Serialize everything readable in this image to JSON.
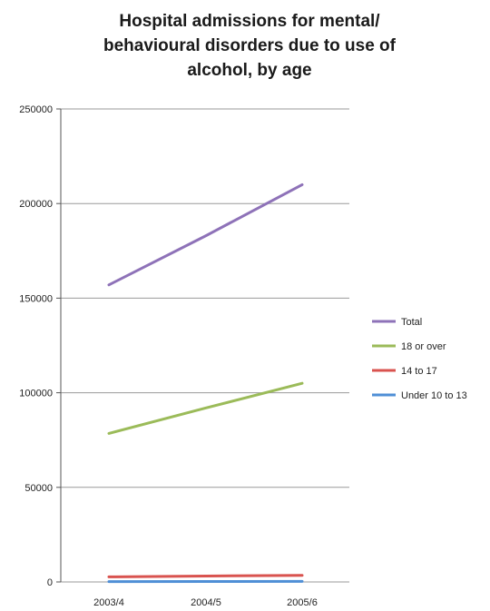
{
  "chart_data": {
    "type": "line",
    "title_lines": [
      "Hospital admissions for mental/",
      "behavioural disorders due to use of",
      "alcohol, by age"
    ],
    "xlabel": "",
    "ylabel": "",
    "categories": [
      "2003/4",
      "2004/5",
      "2005/6"
    ],
    "ylim": [
      0,
      250000
    ],
    "y_ticks": [
      0,
      50000,
      100000,
      150000,
      200000,
      250000
    ],
    "y_tick_labels": [
      "0",
      "50000",
      "100000",
      "150000",
      "200000",
      "250000"
    ],
    "grid": "horizontal",
    "legend_position": "right",
    "series": [
      {
        "name": "Total",
        "color": "#8e72b8",
        "values": [
          157000,
          183000,
          210000
        ]
      },
      {
        "name": "18 or over",
        "color": "#9bbb59",
        "values": [
          78500,
          92000,
          105000
        ]
      },
      {
        "name": "14 to 17",
        "color": "#d9534f",
        "values": [
          2700,
          3100,
          3500
        ]
      },
      {
        "name": "Under 10 to 13",
        "color": "#4f8fd6",
        "values": [
          200,
          250,
          300
        ]
      }
    ]
  }
}
